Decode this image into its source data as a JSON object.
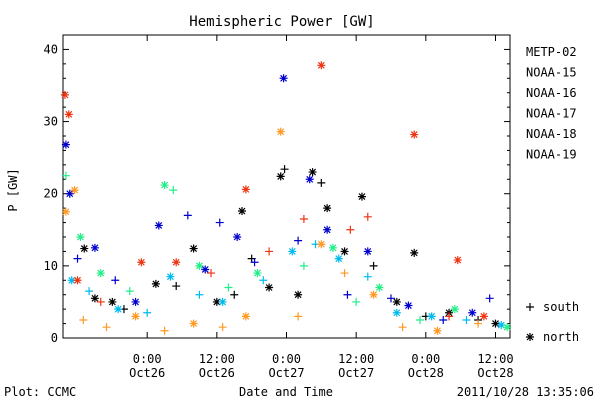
{
  "chart_data": {
    "type": "scatter",
    "title": "Hemispheric Power [GW]",
    "ylabel": "P [GW]",
    "xlabel": "Date and Time",
    "ylim": [
      0,
      42
    ],
    "yticks": [
      0,
      10,
      20,
      30,
      40
    ],
    "xlim": [
      "2011-10-25T09:30",
      "2011-10-28T14:30"
    ],
    "xticks": [
      {
        "t": "2011-10-26T00:00",
        "time": "0:00",
        "date": "Oct26"
      },
      {
        "t": "2011-10-26T12:00",
        "time": "12:00",
        "date": "Oct26"
      },
      {
        "t": "2011-10-27T00:00",
        "time": "0:00",
        "date": "Oct27"
      },
      {
        "t": "2011-10-27T12:00",
        "time": "12:00",
        "date": "Oct27"
      },
      {
        "t": "2011-10-28T00:00",
        "time": "0:00",
        "date": "Oct28"
      },
      {
        "t": "2011-10-28T12:00",
        "time": "12:00",
        "date": "Oct28"
      }
    ],
    "series": [
      {
        "name": "METP-02",
        "color": "#000000",
        "points": [
          {
            "t": "2011-10-25T13:10",
            "v": 12.4,
            "h": "north"
          },
          {
            "t": "2011-10-25T15:00",
            "v": 5.5,
            "h": "north"
          },
          {
            "t": "2011-10-25T18:00",
            "v": 5.0,
            "h": "north"
          },
          {
            "t": "2011-10-25T20:00",
            "v": 4.0,
            "h": "south"
          },
          {
            "t": "2011-10-26T01:30",
            "v": 7.5,
            "h": "north"
          },
          {
            "t": "2011-10-26T05:00",
            "v": 7.2,
            "h": "south"
          },
          {
            "t": "2011-10-26T08:00",
            "v": 12.4,
            "h": "north"
          },
          {
            "t": "2011-10-26T12:00",
            "v": 5.0,
            "h": "north"
          },
          {
            "t": "2011-10-26T15:00",
            "v": 6.0,
            "h": "south"
          },
          {
            "t": "2011-10-26T16:20",
            "v": 17.6,
            "h": "north"
          },
          {
            "t": "2011-10-26T18:00",
            "v": 11.0,
            "h": "south"
          },
          {
            "t": "2011-10-26T21:00",
            "v": 7.0,
            "h": "north"
          },
          {
            "t": "2011-10-26T23:00",
            "v": 22.4,
            "h": "north"
          },
          {
            "t": "2011-10-26T23:40",
            "v": 23.4,
            "h": "south"
          },
          {
            "t": "2011-10-27T02:00",
            "v": 6.0,
            "h": "north"
          },
          {
            "t": "2011-10-27T04:30",
            "v": 23.0,
            "h": "north"
          },
          {
            "t": "2011-10-27T06:00",
            "v": 21.5,
            "h": "south"
          },
          {
            "t": "2011-10-27T07:00",
            "v": 18.0,
            "h": "north"
          },
          {
            "t": "2011-10-27T10:00",
            "v": 12.0,
            "h": "north"
          },
          {
            "t": "2011-10-27T13:00",
            "v": 19.6,
            "h": "north"
          },
          {
            "t": "2011-10-27T15:00",
            "v": 10.0,
            "h": "south"
          },
          {
            "t": "2011-10-27T19:00",
            "v": 5.0,
            "h": "north"
          },
          {
            "t": "2011-10-27T22:00",
            "v": 11.8,
            "h": "north"
          },
          {
            "t": "2011-10-28T00:00",
            "v": 3.0,
            "h": "south"
          },
          {
            "t": "2011-10-28T04:00",
            "v": 3.5,
            "h": "north"
          },
          {
            "t": "2011-10-28T09:00",
            "v": 2.5,
            "h": "south"
          },
          {
            "t": "2011-10-28T12:00",
            "v": 2.0,
            "h": "north"
          }
        ]
      },
      {
        "name": "NOAA-15",
        "color": "#0000cc",
        "points": [
          {
            "t": "2011-10-25T10:00",
            "v": 26.8,
            "h": "north"
          },
          {
            "t": "2011-10-25T10:40",
            "v": 20.0,
            "h": "north"
          },
          {
            "t": "2011-10-25T12:00",
            "v": 11.0,
            "h": "south"
          },
          {
            "t": "2011-10-25T15:00",
            "v": 12.5,
            "h": "north"
          },
          {
            "t": "2011-10-25T18:30",
            "v": 8.0,
            "h": "south"
          },
          {
            "t": "2011-10-25T22:00",
            "v": 5.0,
            "h": "north"
          },
          {
            "t": "2011-10-26T02:00",
            "v": 15.6,
            "h": "north"
          },
          {
            "t": "2011-10-26T07:00",
            "v": 17.0,
            "h": "south"
          },
          {
            "t": "2011-10-26T10:00",
            "v": 9.5,
            "h": "north"
          },
          {
            "t": "2011-10-26T12:30",
            "v": 16.0,
            "h": "south"
          },
          {
            "t": "2011-10-26T15:30",
            "v": 14.0,
            "h": "north"
          },
          {
            "t": "2011-10-26T18:30",
            "v": 10.5,
            "h": "south"
          },
          {
            "t": "2011-10-26T23:30",
            "v": 36.0,
            "h": "north"
          },
          {
            "t": "2011-10-27T02:00",
            "v": 13.5,
            "h": "south"
          },
          {
            "t": "2011-10-27T04:00",
            "v": 22.0,
            "h": "north"
          },
          {
            "t": "2011-10-27T07:00",
            "v": 15.0,
            "h": "north"
          },
          {
            "t": "2011-10-27T10:30",
            "v": 6.0,
            "h": "south"
          },
          {
            "t": "2011-10-27T14:00",
            "v": 12.0,
            "h": "north"
          },
          {
            "t": "2011-10-27T18:00",
            "v": 5.5,
            "h": "south"
          },
          {
            "t": "2011-10-27T21:00",
            "v": 4.5,
            "h": "north"
          },
          {
            "t": "2011-10-28T03:00",
            "v": 2.5,
            "h": "south"
          },
          {
            "t": "2011-10-28T08:00",
            "v": 3.5,
            "h": "north"
          },
          {
            "t": "2011-10-28T11:00",
            "v": 5.5,
            "h": "south"
          }
        ]
      },
      {
        "name": "NOAA-16",
        "color": "#00bbee",
        "points": [
          {
            "t": "2011-10-25T11:00",
            "v": 8.0,
            "h": "north"
          },
          {
            "t": "2011-10-25T14:00",
            "v": 6.5,
            "h": "south"
          },
          {
            "t": "2011-10-25T19:00",
            "v": 4.0,
            "h": "north"
          },
          {
            "t": "2011-10-26T00:00",
            "v": 3.5,
            "h": "south"
          },
          {
            "t": "2011-10-26T04:00",
            "v": 8.5,
            "h": "north"
          },
          {
            "t": "2011-10-26T09:00",
            "v": 6.0,
            "h": "south"
          },
          {
            "t": "2011-10-26T13:00",
            "v": 5.0,
            "h": "north"
          },
          {
            "t": "2011-10-26T20:00",
            "v": 8.0,
            "h": "south"
          },
          {
            "t": "2011-10-27T01:00",
            "v": 12.0,
            "h": "north"
          },
          {
            "t": "2011-10-27T05:00",
            "v": 13.0,
            "h": "south"
          },
          {
            "t": "2011-10-27T09:00",
            "v": 11.0,
            "h": "north"
          },
          {
            "t": "2011-10-27T14:00",
            "v": 8.5,
            "h": "south"
          },
          {
            "t": "2011-10-27T19:00",
            "v": 3.5,
            "h": "north"
          },
          {
            "t": "2011-10-28T01:00",
            "v": 3.0,
            "h": "north"
          },
          {
            "t": "2011-10-28T07:00",
            "v": 2.5,
            "h": "south"
          },
          {
            "t": "2011-10-28T13:00",
            "v": 1.8,
            "h": "north"
          }
        ]
      },
      {
        "name": "NOAA-17",
        "color": "#22ee88",
        "points": [
          {
            "t": "2011-10-25T10:00",
            "v": 22.5,
            "h": "south"
          },
          {
            "t": "2011-10-25T12:30",
            "v": 14.0,
            "h": "north"
          },
          {
            "t": "2011-10-25T16:00",
            "v": 9.0,
            "h": "north"
          },
          {
            "t": "2011-10-25T21:00",
            "v": 6.5,
            "h": "south"
          },
          {
            "t": "2011-10-26T03:00",
            "v": 21.2,
            "h": "north"
          },
          {
            "t": "2011-10-26T04:30",
            "v": 20.5,
            "h": "south"
          },
          {
            "t": "2011-10-26T09:00",
            "v": 10.0,
            "h": "north"
          },
          {
            "t": "2011-10-26T14:00",
            "v": 7.0,
            "h": "south"
          },
          {
            "t": "2011-10-26T19:00",
            "v": 9.0,
            "h": "north"
          },
          {
            "t": "2011-10-27T03:00",
            "v": 10.0,
            "h": "south"
          },
          {
            "t": "2011-10-27T08:00",
            "v": 12.5,
            "h": "north"
          },
          {
            "t": "2011-10-27T12:00",
            "v": 5.0,
            "h": "south"
          },
          {
            "t": "2011-10-27T16:00",
            "v": 7.0,
            "h": "north"
          },
          {
            "t": "2011-10-27T23:00",
            "v": 2.5,
            "h": "south"
          },
          {
            "t": "2011-10-28T05:00",
            "v": 4.0,
            "h": "north"
          },
          {
            "t": "2011-10-28T14:00",
            "v": 1.5,
            "h": "north"
          }
        ]
      },
      {
        "name": "NOAA-18",
        "color": "#ff9922",
        "points": [
          {
            "t": "2011-10-25T10:00",
            "v": 17.5,
            "h": "north"
          },
          {
            "t": "2011-10-25T11:30",
            "v": 20.5,
            "h": "north"
          },
          {
            "t": "2011-10-25T13:00",
            "v": 2.5,
            "h": "south"
          },
          {
            "t": "2011-10-25T17:00",
            "v": 1.5,
            "h": "south"
          },
          {
            "t": "2011-10-25T22:00",
            "v": 3.0,
            "h": "north"
          },
          {
            "t": "2011-10-26T03:00",
            "v": 1.0,
            "h": "south"
          },
          {
            "t": "2011-10-26T08:00",
            "v": 2.0,
            "h": "north"
          },
          {
            "t": "2011-10-26T13:00",
            "v": 1.5,
            "h": "south"
          },
          {
            "t": "2011-10-26T17:00",
            "v": 3.0,
            "h": "north"
          },
          {
            "t": "2011-10-26T23:00",
            "v": 28.6,
            "h": "north"
          },
          {
            "t": "2011-10-27T02:00",
            "v": 3.0,
            "h": "south"
          },
          {
            "t": "2011-10-27T06:00",
            "v": 13.0,
            "h": "north"
          },
          {
            "t": "2011-10-27T10:00",
            "v": 9.0,
            "h": "south"
          },
          {
            "t": "2011-10-27T15:00",
            "v": 6.0,
            "h": "north"
          },
          {
            "t": "2011-10-27T20:00",
            "v": 1.5,
            "h": "south"
          },
          {
            "t": "2011-10-28T02:00",
            "v": 1.0,
            "h": "north"
          },
          {
            "t": "2011-10-28T09:00",
            "v": 2.0,
            "h": "south"
          }
        ]
      },
      {
        "name": "NOAA-19",
        "color": "#ee3311",
        "points": [
          {
            "t": "2011-10-25T09:50",
            "v": 33.7,
            "h": "north"
          },
          {
            "t": "2011-10-25T10:30",
            "v": 31.0,
            "h": "north"
          },
          {
            "t": "2011-10-25T12:00",
            "v": 8.0,
            "h": "north"
          },
          {
            "t": "2011-10-25T16:00",
            "v": 5.0,
            "h": "south"
          },
          {
            "t": "2011-10-25T23:00",
            "v": 10.5,
            "h": "north"
          },
          {
            "t": "2011-10-26T05:00",
            "v": 10.5,
            "h": "north"
          },
          {
            "t": "2011-10-26T11:00",
            "v": 9.0,
            "h": "south"
          },
          {
            "t": "2011-10-26T17:00",
            "v": 20.6,
            "h": "north"
          },
          {
            "t": "2011-10-26T21:00",
            "v": 12.0,
            "h": "south"
          },
          {
            "t": "2011-10-27T03:00",
            "v": 16.5,
            "h": "south"
          },
          {
            "t": "2011-10-27T06:00",
            "v": 37.8,
            "h": "north"
          },
          {
            "t": "2011-10-27T11:00",
            "v": 15.0,
            "h": "south"
          },
          {
            "t": "2011-10-27T14:00",
            "v": 16.8,
            "h": "south"
          },
          {
            "t": "2011-10-27T22:00",
            "v": 28.2,
            "h": "north"
          },
          {
            "t": "2011-10-28T04:00",
            "v": 3.0,
            "h": "south"
          },
          {
            "t": "2011-10-28T05:30",
            "v": 10.8,
            "h": "north"
          },
          {
            "t": "2011-10-28T10:00",
            "v": 3.0,
            "h": "north"
          }
        ]
      }
    ],
    "marker_legend": [
      {
        "marker": "+",
        "label": "south"
      },
      {
        "marker": "*",
        "label": "north"
      }
    ],
    "grid": false,
    "legend_position": "right"
  },
  "footer": {
    "left": "Plot: CCMC",
    "center": "Date and Time",
    "right": "2011/10/28 13:35:06"
  }
}
